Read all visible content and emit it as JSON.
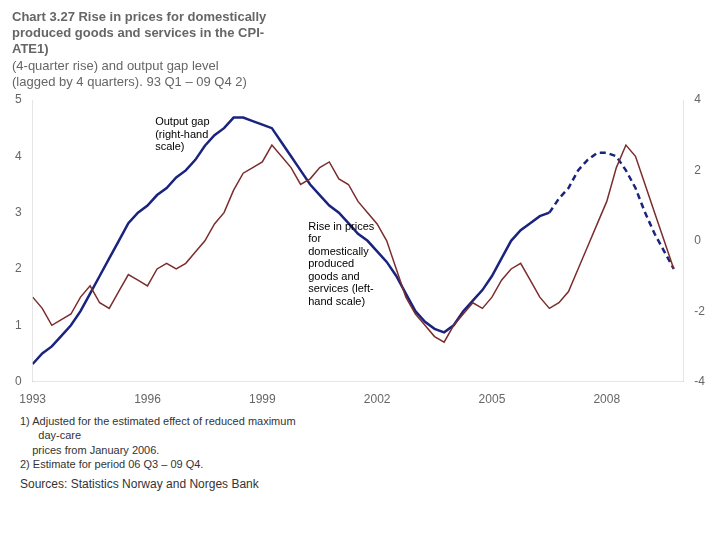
{
  "chart_data": {
    "type": "line",
    "title": "Chart 3.27 Rise in prices for domestically\nproduced goods and services in the CPI-\nATE1)",
    "subtitle": "(4-quarter rise) and output gap level\n(lagged by 4 quarters). 93 Q1 – 09 Q4 2)",
    "footnotes": [
      "1) Adjusted for the estimated effect of reduced maximum\n      day-care\n    prices from January 2006.",
      "2) Estimate for period 06 Q3 – 09 Q4."
    ],
    "source": "Sources: Statistics Norway and Norges Bank",
    "annotations": [
      {
        "text": "Output gap\n(right-hand\nscale)",
        "x": 1996.2,
        "y": 4.7,
        "axis": "y"
      },
      {
        "text": "Rise in prices\nfor\ndomestically\nproduced\ngoods and\nservices (left-\nhand scale)",
        "x": 2000.2,
        "y": 2.85,
        "axis": "y"
      }
    ],
    "xlim": [
      1993,
      2010
    ],
    "xticks": [
      1993,
      1996,
      1999,
      2002,
      2005,
      2008
    ],
    "ylim": [
      0,
      5
    ],
    "yticks": [
      0,
      1,
      2,
      3,
      4,
      5
    ],
    "y2lim": [
      -4,
      4
    ],
    "y2ticks": [
      -4,
      -2,
      0,
      2,
      4
    ],
    "grid": false,
    "series": [
      {
        "color": "#7B2D2D",
        "axis": "y",
        "line_style": "solid",
        "x": [
          1993.0,
          1993.25,
          1993.5,
          1993.75,
          1994.0,
          1994.25,
          1994.5,
          1994.75,
          1995.0,
          1995.25,
          1995.5,
          1995.75,
          1996.0,
          1996.25,
          1996.5,
          1996.75,
          1997.0,
          1997.25,
          1997.5,
          1997.75,
          1998.0,
          1998.25,
          1998.5,
          1998.75,
          1999.0,
          1999.25,
          1999.5,
          1999.75,
          2000.0,
          2000.25,
          2000.5,
          2000.75,
          2001.0,
          2001.25,
          2001.5,
          2001.75,
          2002.0,
          2002.25,
          2002.5,
          2002.75,
          2003.0,
          2003.25,
          2003.5,
          2003.75,
          2004.0,
          2004.25,
          2004.5,
          2004.75,
          2005.0,
          2005.25,
          2005.5,
          2005.75,
          2006.0,
          2006.25,
          2006.5,
          2006.75,
          2007.0,
          2007.25,
          2007.5,
          2007.75,
          2008.0,
          2008.25,
          2008.5,
          2008.75,
          2009.0,
          2009.25,
          2009.5,
          2009.75
        ],
        "values": [
          1.5,
          1.3,
          1.0,
          1.1,
          1.2,
          1.5,
          1.7,
          1.4,
          1.3,
          1.6,
          1.9,
          1.8,
          1.7,
          2.0,
          2.1,
          2.0,
          2.1,
          2.3,
          2.5,
          2.8,
          3.0,
          3.4,
          3.7,
          3.8,
          3.9,
          4.2,
          4.0,
          3.8,
          3.5,
          3.6,
          3.8,
          3.9,
          3.6,
          3.5,
          3.2,
          3.0,
          2.8,
          2.5,
          2.0,
          1.5,
          1.2,
          1.0,
          0.8,
          0.7,
          1.0,
          1.2,
          1.4,
          1.3,
          1.5,
          1.8,
          2.0,
          2.1,
          1.8,
          1.5,
          1.3,
          1.4,
          1.6,
          2.0,
          2.4,
          2.8,
          3.2,
          3.8,
          4.2,
          4.0,
          3.5,
          3.0,
          2.5,
          2.0
        ]
      },
      {
        "color": "#1A237E",
        "axis": "y2",
        "line_style": "solid",
        "x": [
          1993.0,
          1993.25,
          1993.5,
          1993.75,
          1994.0,
          1994.25,
          1994.5,
          1994.75,
          1995.0,
          1995.25,
          1995.5,
          1995.75,
          1996.0,
          1996.25,
          1996.5,
          1996.75,
          1997.0,
          1997.25,
          1997.5,
          1997.75,
          1998.0,
          1998.25,
          1998.5,
          1998.75,
          1999.0,
          1999.25,
          1999.5,
          1999.75,
          2000.0,
          2000.25,
          2000.5,
          2000.75,
          2001.0,
          2001.25,
          2001.5,
          2001.75,
          2002.0,
          2002.25,
          2002.5,
          2002.75,
          2003.0,
          2003.25,
          2003.5,
          2003.75,
          2004.0,
          2004.25,
          2004.5,
          2004.75,
          2005.0,
          2005.25,
          2005.5,
          2005.75,
          2006.0,
          2006.25,
          2006.5
        ],
        "values": [
          -3.5,
          -3.2,
          -3.0,
          -2.7,
          -2.4,
          -2.0,
          -1.5,
          -1.0,
          -0.5,
          0.0,
          0.5,
          0.8,
          1.0,
          1.3,
          1.5,
          1.8,
          2.0,
          2.3,
          2.7,
          3.0,
          3.2,
          3.5,
          3.5,
          3.4,
          3.3,
          3.2,
          2.8,
          2.4,
          2.0,
          1.6,
          1.3,
          1.0,
          0.8,
          0.5,
          0.2,
          0.0,
          -0.3,
          -0.6,
          -1.0,
          -1.5,
          -2.0,
          -2.3,
          -2.5,
          -2.6,
          -2.4,
          -2.0,
          -1.7,
          -1.4,
          -1.0,
          -0.5,
          0.0,
          0.3,
          0.5,
          0.7,
          0.8
        ]
      },
      {
        "color": "#1A237E",
        "axis": "y2",
        "line_style": "dashed",
        "x": [
          2006.5,
          2006.75,
          2007.0,
          2007.25,
          2007.5,
          2007.75,
          2008.0,
          2008.25,
          2008.5,
          2008.75,
          2009.0,
          2009.25,
          2009.5,
          2009.75
        ],
        "values": [
          0.8,
          1.2,
          1.5,
          2.0,
          2.3,
          2.5,
          2.5,
          2.4,
          2.0,
          1.5,
          0.8,
          0.2,
          -0.3,
          -0.8
        ]
      }
    ]
  }
}
